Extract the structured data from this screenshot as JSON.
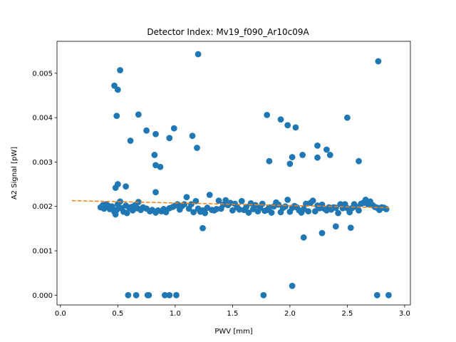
{
  "chart_data": {
    "type": "scatter",
    "title": "Detector Index: Mv19_f090_Ar10c09A",
    "xlabel": "PWV [mm]",
    "ylabel": "A2 Signal [pW]",
    "xlim": [
      -0.03,
      3.05
    ],
    "ylim": [
      -0.00022,
      0.00572
    ],
    "xticks": [
      0.0,
      0.5,
      1.0,
      1.5,
      2.0,
      2.5,
      3.0
    ],
    "xtick_labels": [
      "0.0",
      "0.5",
      "1.0",
      "1.5",
      "2.0",
      "2.5",
      "3.0"
    ],
    "yticks": [
      0.0,
      0.001,
      0.002,
      0.003,
      0.004,
      0.005
    ],
    "ytick_labels": [
      "0.000",
      "0.001",
      "0.002",
      "0.003",
      "0.004",
      "0.005"
    ],
    "grid": false,
    "colors": {
      "points": "#1f77b4",
      "fit": "#ff7f0e"
    },
    "series": [
      {
        "style": "points",
        "points": [
          [
            0.35,
            0.00198
          ],
          [
            0.37,
            0.00203
          ],
          [
            0.38,
            0.00195
          ],
          [
            0.4,
            0.00205
          ],
          [
            0.42,
            0.00201
          ],
          [
            0.43,
            0.00194
          ],
          [
            0.45,
            0.002
          ],
          [
            0.47,
            0.00188
          ],
          [
            0.48,
            0.00182
          ],
          [
            0.49,
            0.00192
          ],
          [
            0.5,
            0.00205
          ],
          [
            0.52,
            0.00211
          ],
          [
            0.53,
            0.00196
          ],
          [
            0.55,
            0.00188
          ],
          [
            0.57,
            0.00202
          ],
          [
            0.58,
            0.00185
          ],
          [
            0.6,
            0.00197
          ],
          [
            0.62,
            0.00199
          ],
          [
            0.63,
            0.00191
          ],
          [
            0.65,
            0.00203
          ],
          [
            0.67,
            0.00196
          ],
          [
            0.68,
            0.0021
          ],
          [
            0.7,
            0.00192
          ],
          [
            0.72,
            0.00198
          ],
          [
            0.75,
            0.00195
          ],
          [
            0.78,
            0.00189
          ],
          [
            0.8,
            0.00192
          ],
          [
            0.83,
            0.00186
          ],
          [
            0.85,
            0.00191
          ],
          [
            0.88,
            0.00189
          ],
          [
            0.9,
            0.00194
          ],
          [
            0.92,
            0.00187
          ],
          [
            0.95,
            0.00196
          ],
          [
            0.98,
            0.00199
          ],
          [
            1.0,
            0.00202
          ],
          [
            1.02,
            0.00205
          ],
          [
            1.04,
            0.00193
          ],
          [
            1.06,
            0.00201
          ],
          [
            1.08,
            0.00205
          ],
          [
            1.1,
            0.00221
          ],
          [
            1.12,
            0.00195
          ],
          [
            1.14,
            0.00205
          ],
          [
            1.16,
            0.00187
          ],
          [
            1.18,
            0.00212
          ],
          [
            1.2,
            0.00195
          ],
          [
            1.22,
            0.00188
          ],
          [
            1.24,
            0.00191
          ],
          [
            1.26,
            0.00185
          ],
          [
            1.28,
            0.00197
          ],
          [
            1.3,
            0.00226
          ],
          [
            1.32,
            0.00192
          ],
          [
            1.34,
            0.00191
          ],
          [
            1.36,
            0.00194
          ],
          [
            1.38,
            0.00213
          ],
          [
            1.4,
            0.00195
          ],
          [
            1.42,
            0.00204
          ],
          [
            1.44,
            0.00214
          ],
          [
            1.46,
            0.00203
          ],
          [
            1.48,
            0.00208
          ],
          [
            1.5,
            0.00191
          ],
          [
            1.52,
            0.00206
          ],
          [
            1.54,
            0.00198
          ],
          [
            1.56,
            0.00193
          ],
          [
            1.58,
            0.00212
          ],
          [
            1.6,
            0.00192
          ],
          [
            1.62,
            0.00199
          ],
          [
            1.64,
            0.00186
          ],
          [
            1.66,
            0.00207
          ],
          [
            1.68,
            0.00194
          ],
          [
            1.7,
            0.00203
          ],
          [
            1.72,
            0.00189
          ],
          [
            1.74,
            0.00197
          ],
          [
            1.76,
            0.00206
          ],
          [
            1.78,
            0.0019
          ],
          [
            1.8,
            0.00192
          ],
          [
            1.82,
            0.00198
          ],
          [
            1.84,
            0.00186
          ],
          [
            1.86,
            0.002
          ],
          [
            1.88,
            0.00209
          ],
          [
            1.9,
            0.00204
          ],
          [
            1.92,
            0.00187
          ],
          [
            1.94,
            0.00197
          ],
          [
            1.96,
            0.002
          ],
          [
            1.98,
            0.00215
          ],
          [
            2.0,
            0.00188
          ],
          [
            2.02,
            0.00197
          ],
          [
            2.04,
            0.00201
          ],
          [
            2.06,
            0.00198
          ],
          [
            2.08,
            0.00191
          ],
          [
            2.1,
            0.00186
          ],
          [
            2.12,
            0.00194
          ],
          [
            2.14,
            0.00206
          ],
          [
            2.16,
            0.00189
          ],
          [
            2.18,
            0.00208
          ],
          [
            2.2,
            0.00213
          ],
          [
            2.22,
            0.00189
          ],
          [
            2.24,
            0.00202
          ],
          [
            2.26,
            0.00196
          ],
          [
            2.28,
            0.00204
          ],
          [
            2.3,
            0.00195
          ],
          [
            2.32,
            0.00191
          ],
          [
            2.34,
            0.00198
          ],
          [
            2.36,
            0.00193
          ],
          [
            2.38,
            0.00198
          ],
          [
            2.4,
            0.00197
          ],
          [
            2.42,
            0.00185
          ],
          [
            2.44,
            0.00205
          ],
          [
            2.46,
            0.00196
          ],
          [
            2.48,
            0.00205
          ],
          [
            2.5,
            0.00196
          ],
          [
            2.52,
            0.00187
          ],
          [
            2.54,
            0.00196
          ],
          [
            2.56,
            0.00205
          ],
          [
            2.58,
            0.00199
          ],
          [
            2.6,
            0.00191
          ],
          [
            2.62,
            0.00206
          ],
          [
            2.64,
            0.00208
          ],
          [
            2.66,
            0.00215
          ],
          [
            2.68,
            0.00205
          ],
          [
            2.7,
            0.00211
          ],
          [
            2.72,
            0.00203
          ],
          [
            2.74,
            0.00199
          ],
          [
            2.76,
            0.00197
          ],
          [
            2.78,
            0.00192
          ],
          [
            2.8,
            0.00198
          ],
          [
            2.82,
            0.00197
          ],
          [
            2.84,
            0.00194
          ],
          [
            0.47,
            0.00472
          ],
          [
            0.5,
            0.00463
          ],
          [
            0.52,
            0.00507
          ],
          [
            0.49,
            0.00404
          ],
          [
            0.68,
            0.00407
          ],
          [
            0.75,
            0.00371
          ],
          [
            0.83,
            0.00363
          ],
          [
            0.95,
            0.00354
          ],
          [
            0.99,
            0.00376
          ],
          [
            1.15,
            0.00359
          ],
          [
            1.19,
            0.00332
          ],
          [
            1.2,
            0.00543
          ],
          [
            0.61,
            0.00348
          ],
          [
            0.82,
            0.00316
          ],
          [
            0.83,
            0.00293
          ],
          [
            0.87,
            0.00289
          ],
          [
            0.5,
            0.0025
          ],
          [
            0.48,
            0.00242
          ],
          [
            0.57,
            0.00245
          ],
          [
            0.83,
            0.00232
          ],
          [
            1.24,
            0.00151
          ],
          [
            2.12,
            0.0013
          ],
          [
            2.28,
            0.0014
          ],
          [
            2.4,
            0.00155
          ],
          [
            2.53,
            0.00152
          ],
          [
            1.8,
            0.00406
          ],
          [
            1.92,
            0.00396
          ],
          [
            1.98,
            0.00383
          ],
          [
            2.05,
            0.00378
          ],
          [
            2.5,
            0.004
          ],
          [
            2.77,
            0.00527
          ],
          [
            1.82,
            0.00302
          ],
          [
            2.0,
            0.00296
          ],
          [
            2.02,
            0.00311
          ],
          [
            2.11,
            0.00316
          ],
          [
            2.24,
            0.00337
          ],
          [
            2.24,
            0.0031
          ],
          [
            2.32,
            0.00328
          ],
          [
            2.35,
            0.00316
          ],
          [
            2.6,
            0.00302
          ],
          [
            0.59,
            0.0
          ],
          [
            0.66,
            0.0
          ],
          [
            0.76,
            0.0
          ],
          [
            0.77,
            0.0
          ],
          [
            0.91,
            0.0
          ],
          [
            0.95,
            0.0
          ],
          [
            1.01,
            0.0
          ],
          [
            1.77,
            0.0
          ],
          [
            2.02,
            0.00021
          ],
          [
            2.76,
            0.0
          ],
          [
            2.86,
            0.0
          ]
        ]
      },
      {
        "style": "dashed-line",
        "x": [
          0.1,
          2.87
        ],
        "y": [
          0.00213,
          0.00197
        ]
      }
    ]
  }
}
